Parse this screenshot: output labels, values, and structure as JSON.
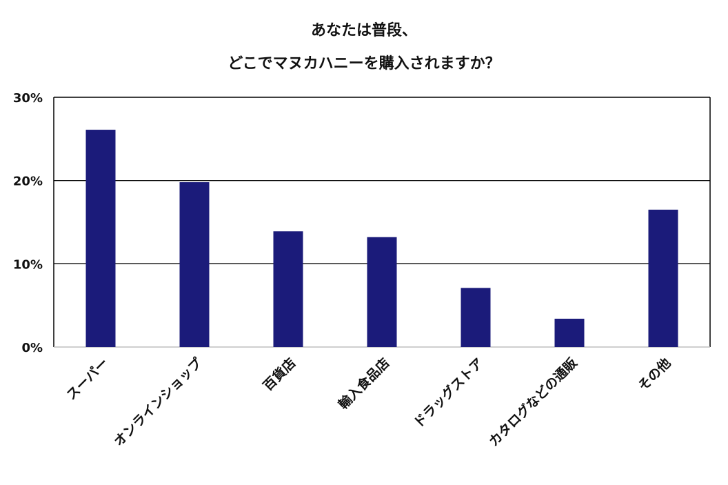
{
  "chart_data": {
    "type": "bar",
    "title_lines": [
      "あなたは普段、",
      "どこでマヌカハニーを購入されますか？"
    ],
    "categories": [
      "スーパー",
      "オンラインショップ",
      "百貨店",
      "輸入食品店",
      "ドラッグストア",
      "カタログなどの通販",
      "その他"
    ],
    "values": [
      26.1,
      19.8,
      13.9,
      13.2,
      7.1,
      3.4,
      16.5
    ],
    "y_ticks": [
      "0%",
      "10%",
      "20%",
      "30%"
    ],
    "ylim": [
      0,
      30
    ],
    "bar_color": "#1b1b7a",
    "grid": true,
    "legend": "none"
  }
}
